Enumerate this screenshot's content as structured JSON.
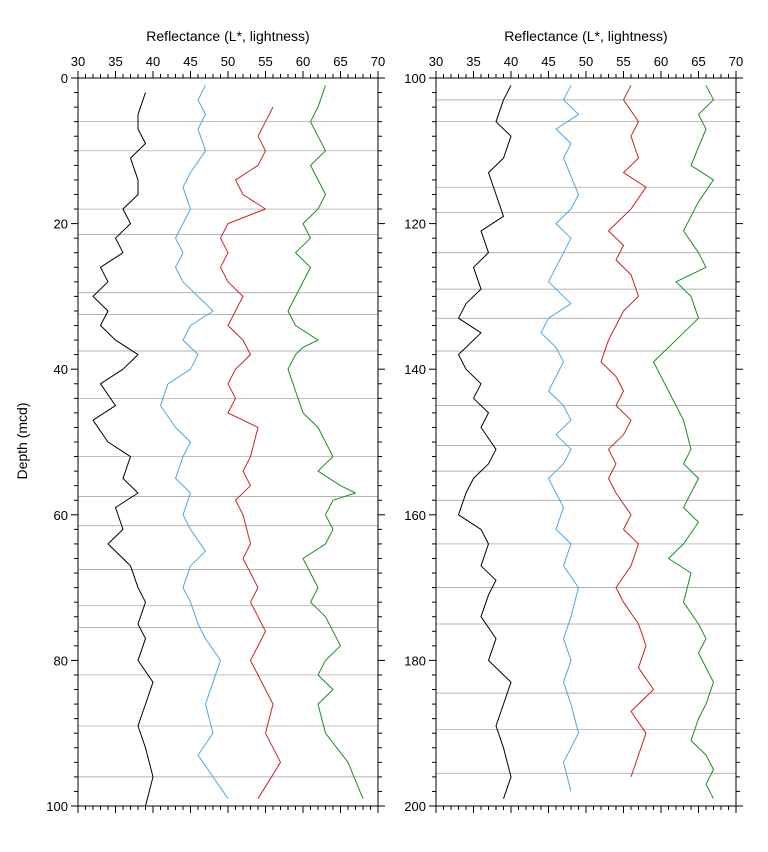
{
  "chart_data": [
    {
      "type": "line",
      "xlabel": "Reflectance (L*, lightness)",
      "ylabel": "Depth (mcd)",
      "xlim": [
        30,
        70
      ],
      "ylim": [
        0,
        100
      ],
      "y_inverted": true,
      "x_ticks": [
        "30",
        "35",
        "40",
        "45",
        "50",
        "55",
        "60",
        "65",
        "70"
      ],
      "y_ticks": [
        "0",
        "20",
        "40",
        "60",
        "80",
        "100"
      ],
      "section_breaks": [
        6,
        10,
        18,
        21.5,
        29.5,
        32.5,
        37.5,
        44,
        52,
        57.5,
        61.5,
        67.5,
        72.5,
        75.5,
        82,
        89,
        96
      ],
      "series": [
        {
          "color": "#000000",
          "x": [
            39,
            38,
            38,
            39,
            37,
            38,
            38,
            36,
            37,
            35,
            36,
            33,
            34,
            32,
            34,
            33,
            35,
            38,
            36,
            33,
            35,
            32,
            34,
            37,
            36,
            38,
            35,
            36,
            34,
            37,
            38,
            39,
            38,
            39,
            38,
            40,
            39,
            38,
            39,
            40,
            39
          ],
          "y": [
            2,
            5,
            7,
            9,
            11,
            14,
            16,
            18,
            20,
            22,
            24,
            26,
            28,
            30,
            32,
            34,
            36,
            38,
            40,
            42,
            45,
            47,
            50,
            52,
            55,
            57,
            59,
            62,
            64,
            67,
            70,
            72,
            75,
            77,
            80,
            83,
            86,
            89,
            92,
            96,
            100
          ]
        },
        {
          "color": "#4aa8e8",
          "x": [
            47,
            46,
            47,
            46,
            47,
            45,
            44,
            45,
            44,
            43,
            44,
            43,
            44,
            46,
            48,
            45,
            44,
            46,
            45,
            42,
            41,
            43,
            45,
            44,
            43,
            45,
            44,
            45,
            47,
            45,
            44,
            45,
            46,
            47,
            49,
            48,
            47,
            48,
            46,
            48,
            50
          ],
          "y": [
            1,
            3,
            5,
            7,
            10,
            13,
            15,
            18,
            20,
            22,
            24,
            26,
            28,
            30,
            32,
            34,
            36,
            38,
            40,
            42,
            45,
            48,
            50,
            52,
            55,
            57,
            60,
            62,
            65,
            67,
            70,
            72,
            75,
            77,
            80,
            83,
            86,
            90,
            93,
            96,
            99
          ]
        },
        {
          "color": "#cc2222",
          "x": [
            56,
            55,
            54,
            55,
            54,
            51,
            52,
            55,
            50,
            49,
            50,
            49,
            50,
            52,
            51,
            50,
            52,
            53,
            51,
            50,
            51,
            50,
            54,
            53,
            52,
            53,
            51,
            52,
            53,
            52,
            53,
            54,
            53,
            54,
            55,
            53,
            54,
            56,
            55,
            57,
            54
          ],
          "y": [
            4,
            6,
            8,
            10,
            12,
            14,
            16,
            18,
            20,
            22,
            24,
            26,
            28,
            30,
            32,
            34,
            36,
            38,
            40,
            42,
            44,
            46,
            48,
            52,
            54,
            56,
            58,
            60,
            64,
            66,
            68,
            70,
            72,
            74,
            76,
            80,
            82,
            86,
            90,
            94,
            99
          ]
        },
        {
          "color": "#1a8f1a",
          "x": [
            63,
            62,
            61,
            62,
            63,
            61,
            62,
            63,
            62,
            60,
            61,
            59,
            61,
            58,
            59,
            62,
            60,
            59,
            58,
            60,
            62,
            63,
            64,
            63,
            62,
            65,
            67,
            64,
            63,
            64,
            63,
            60,
            61,
            62,
            61,
            63,
            64,
            65,
            63,
            62,
            64,
            62,
            63,
            66,
            68
          ],
          "y": [
            1,
            4,
            6,
            8,
            10,
            12,
            14,
            16,
            18,
            20,
            22,
            24,
            26,
            32,
            34,
            36,
            37,
            38,
            40,
            46,
            48,
            50,
            52,
            53,
            54,
            56,
            57,
            58,
            60,
            62,
            64,
            66,
            68,
            70,
            72,
            74,
            76,
            78,
            80,
            82,
            84,
            86,
            90,
            94,
            99
          ]
        }
      ]
    },
    {
      "type": "line",
      "xlabel": "Reflectance (L*, lightness)",
      "ylabel": "",
      "xlim": [
        30,
        70
      ],
      "ylim": [
        100,
        200
      ],
      "y_inverted": true,
      "x_ticks": [
        "30",
        "35",
        "40",
        "45",
        "50",
        "55",
        "60",
        "65",
        "70"
      ],
      "y_ticks": [
        "100",
        "120",
        "140",
        "160",
        "180",
        "200"
      ],
      "section_breaks": [
        103,
        106,
        115,
        118.5,
        124,
        129,
        133,
        137.5,
        145,
        150.5,
        154,
        158,
        164,
        170,
        175,
        184.5,
        189.5,
        195.5
      ],
      "series": [
        {
          "color": "#000000",
          "x": [
            40,
            39,
            38,
            40,
            39,
            37,
            38,
            39,
            36,
            37,
            35,
            36,
            34,
            33,
            36,
            33,
            34,
            36,
            35,
            37,
            36,
            38,
            37,
            35,
            34,
            33,
            36,
            37,
            36,
            38,
            37,
            36,
            38,
            37,
            40,
            39,
            38,
            39,
            40,
            39
          ],
          "y": [
            101,
            103,
            106,
            108,
            111,
            113,
            116,
            119,
            121,
            124,
            126,
            129,
            131,
            133,
            135,
            138,
            140,
            142,
            144,
            146,
            148,
            151,
            153,
            155,
            157,
            160,
            162,
            164,
            167,
            169,
            171,
            174,
            177,
            180,
            183,
            186,
            189,
            192,
            196,
            199
          ]
        },
        {
          "color": "#4aa8e8",
          "x": [
            48,
            47,
            49,
            46,
            48,
            47,
            49,
            48,
            46,
            48,
            47,
            46,
            45,
            48,
            45,
            44,
            46,
            47,
            46,
            45,
            47,
            48,
            46,
            48,
            47,
            45,
            46,
            47,
            46,
            48,
            47,
            49,
            48,
            47,
            48,
            47,
            48,
            49,
            47,
            48
          ],
          "y": [
            101,
            103,
            105,
            107,
            109,
            111,
            116,
            118,
            120,
            122,
            124,
            126,
            128,
            131,
            133,
            135,
            137,
            139,
            141,
            143,
            145,
            147,
            149,
            151,
            153,
            155,
            157,
            159,
            162,
            164,
            167,
            170,
            174,
            177,
            180,
            183,
            186,
            190,
            194,
            198
          ]
        },
        {
          "color": "#cc2222",
          "x": [
            56,
            55,
            57,
            56,
            57,
            55,
            58,
            56,
            53,
            55,
            54,
            56,
            57,
            55,
            54,
            53,
            52,
            54,
            55,
            54,
            56,
            55,
            53,
            54,
            53,
            54,
            56,
            55,
            57,
            56,
            54,
            55,
            57,
            58,
            57,
            59,
            56,
            58,
            57,
            56
          ],
          "y": [
            101,
            103,
            106,
            108,
            111,
            113,
            115,
            118,
            121,
            123,
            125,
            127,
            130,
            132,
            134,
            136,
            139,
            141,
            143,
            145,
            147,
            149,
            151,
            153,
            155,
            157,
            160,
            162,
            164,
            167,
            170,
            172,
            175,
            178,
            181,
            184,
            187,
            190,
            193,
            196
          ]
        },
        {
          "color": "#1a8f1a",
          "x": [
            66,
            67,
            65,
            66,
            64,
            67,
            65,
            64,
            63,
            65,
            66,
            62,
            64,
            65,
            63,
            61,
            59,
            60,
            61,
            62,
            63,
            64,
            63,
            65,
            64,
            63,
            65,
            63,
            61,
            64,
            63,
            65,
            66,
            65,
            67,
            66,
            65,
            64,
            66,
            67,
            66,
            67
          ],
          "y": [
            101,
            103,
            105,
            107,
            112,
            114,
            117,
            119,
            121,
            124,
            126,
            128,
            130,
            133,
            135,
            137,
            139,
            141,
            143,
            145,
            147,
            151,
            153,
            155,
            157,
            159,
            161,
            164,
            166,
            168,
            172,
            175,
            177,
            179,
            183,
            186,
            188,
            191,
            193,
            195,
            197,
            199
          ]
        }
      ]
    }
  ]
}
